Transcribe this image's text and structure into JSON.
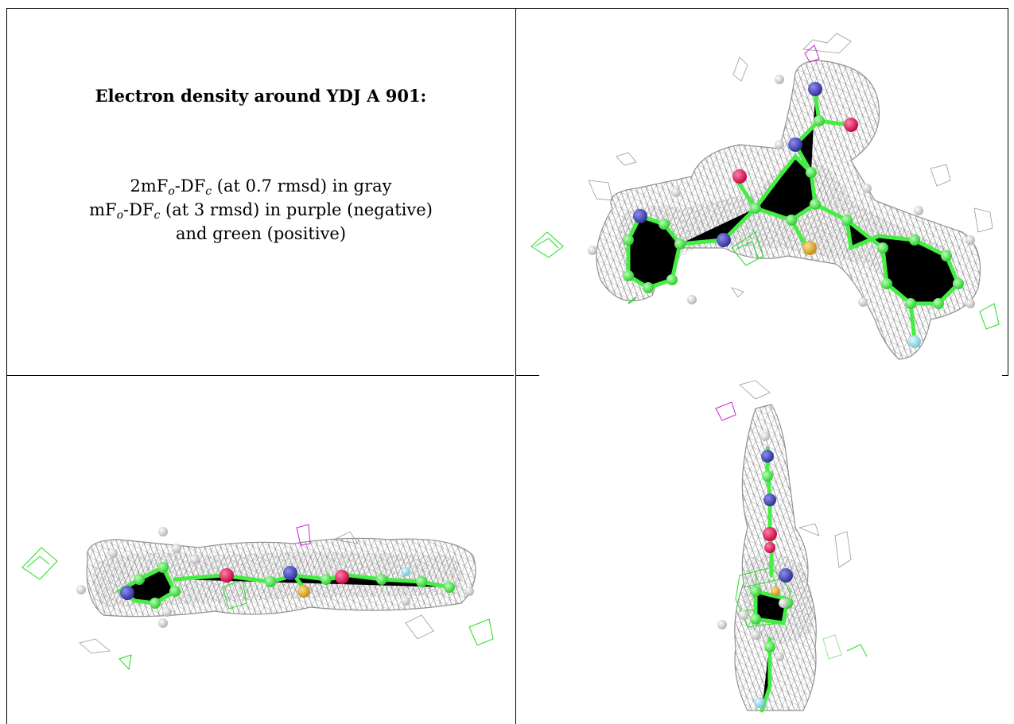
{
  "caption": {
    "title": "Electron density around YDJ A 901:",
    "line1_pre": "2mF",
    "line1_o": "o",
    "line1_mid": "-DF",
    "line1_c": "c",
    "line1_post": " (at 0.7 rmsd) in gray",
    "line2_pre": "mF",
    "line2_o": "o",
    "line2_mid": "-DF",
    "line2_c": "c",
    "line2_post": " (at 3 rmsd) in purple (negative)",
    "line3": "and green (positive)"
  },
  "colors": {
    "mesh_gray": "#8f8f8f",
    "mesh_green": "#22dd22",
    "mesh_purple": "#cc22cc",
    "carbon": "#44ee44",
    "nitrogen": "#4a4ab8",
    "oxygen": "#e8105a",
    "sulfur": "#e0b030",
    "fluorine": "#90dce8",
    "hydrogen": "#e8e8e8"
  }
}
